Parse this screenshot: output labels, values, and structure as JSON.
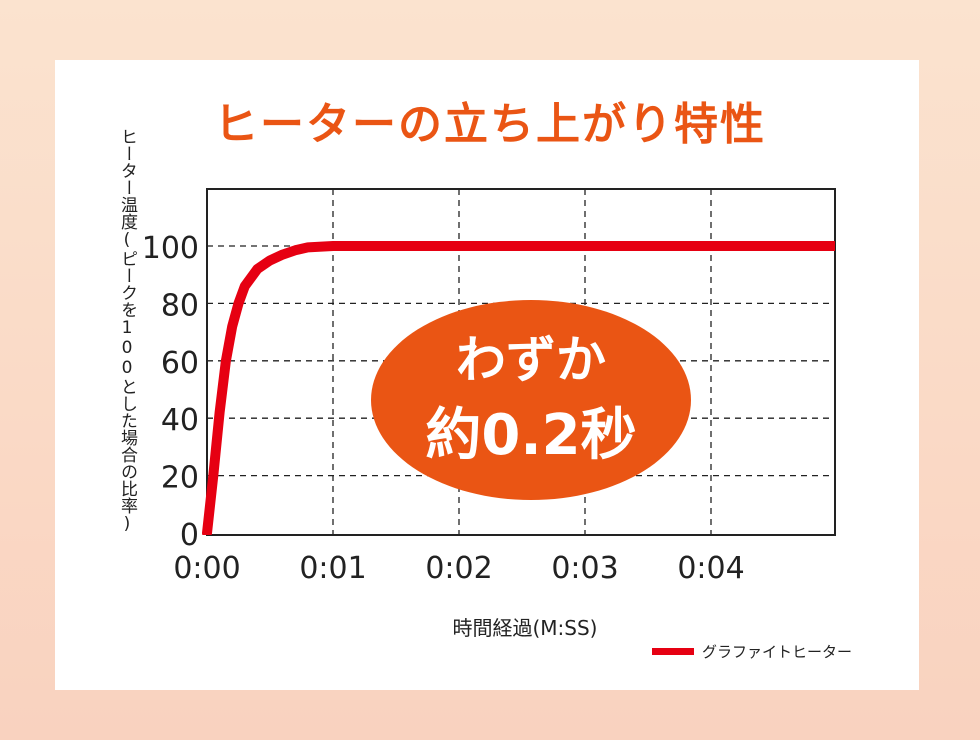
{
  "chart_data": {
    "type": "line",
    "title": "ヒーターの立ち上がり特性",
    "xlabel": "時間経過(M:SS)",
    "ylabel": "ヒーター温度(ピークを100とした場合の比率)",
    "x_ticks": [
      "0:00",
      "0:01",
      "0:02",
      "0:03",
      "0:04"
    ],
    "y_ticks": [
      "0",
      "20",
      "40",
      "60",
      "80",
      "100"
    ],
    "xlim": [
      0,
      5
    ],
    "ylim": [
      0,
      100
    ],
    "grid": true,
    "legend_position": "bottom-right",
    "series": [
      {
        "name": "グラファイトヒーター",
        "color": "#e60012",
        "x": [
          0.0,
          0.05,
          0.1,
          0.15,
          0.2,
          0.25,
          0.3,
          0.4,
          0.5,
          0.6,
          0.7,
          0.8,
          1.0,
          2.0,
          3.0,
          4.0,
          5.0
        ],
        "y": [
          0,
          20,
          42,
          60,
          72,
          80,
          86,
          92,
          95,
          97,
          98.5,
          99.5,
          100,
          100,
          100,
          100,
          100
        ]
      }
    ],
    "annotation": {
      "line1": "わずか",
      "line2": "約0.2秒",
      "color": "#ea5514"
    }
  }
}
